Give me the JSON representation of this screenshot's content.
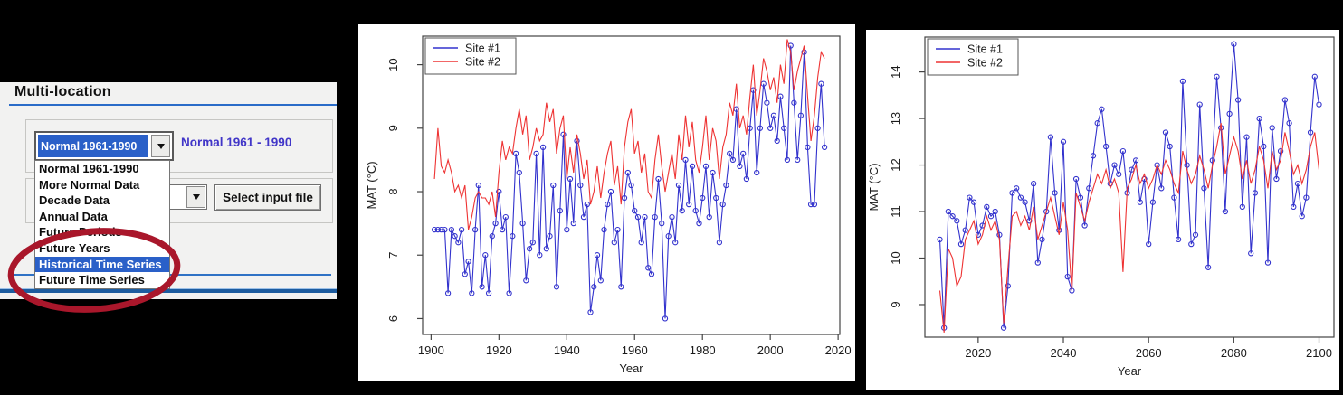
{
  "panel": {
    "title": "Multi-location",
    "accent_color": "#2a6cc8",
    "combo1": {
      "value": "Normal 1961-1990"
    },
    "combo1_label": "Normal 1961 - 1990",
    "select_button": "Select input file",
    "dropdown_items": [
      "Normal 1961-1990",
      "More Normal Data",
      "Decade Data",
      "Annual Data",
      "Future Periods",
      "Future Years",
      "Historical Time Series",
      "Future Time Series"
    ],
    "highlighted_index": 6,
    "highlight_color": "#2a60c8",
    "annotation_color": "#a9172b"
  },
  "chart_data": [
    {
      "type": "line",
      "title": "",
      "xlabel": "Year",
      "ylabel": "MAT (°C)",
      "xlim": [
        1897.5,
        2020.5
      ],
      "ylim": [
        5.75,
        10.45
      ],
      "xticks": [
        1900,
        1920,
        1940,
        1960,
        1980,
        2000,
        2020
      ],
      "yticks": [
        6,
        7,
        8,
        9,
        10
      ],
      "grid": false,
      "legend_position": "topleft",
      "start_year": 1901,
      "series": [
        {
          "name": "Site #1",
          "color": "#3232cd",
          "marker": "circle",
          "values": [
            7.4,
            7.4,
            7.4,
            7.4,
            6.4,
            7.4,
            7.3,
            7.2,
            7.4,
            6.7,
            6.9,
            6.4,
            7.4,
            8.1,
            6.5,
            7.0,
            6.4,
            7.3,
            7.5,
            8.0,
            7.4,
            7.6,
            6.4,
            7.3,
            8.6,
            8.3,
            7.5,
            6.6,
            7.1,
            7.2,
            8.6,
            7.0,
            8.7,
            7.1,
            7.3,
            8.1,
            6.5,
            7.7,
            8.9,
            7.4,
            8.2,
            7.5,
            8.8,
            8.1,
            7.6,
            7.8,
            6.1,
            6.5,
            7.0,
            6.6,
            7.4,
            7.8,
            8.0,
            7.2,
            7.4,
            6.5,
            7.9,
            8.3,
            8.1,
            7.7,
            7.6,
            7.2,
            7.6,
            6.8,
            6.7,
            7.6,
            8.2,
            7.5,
            6.0,
            7.3,
            7.6,
            7.2,
            8.1,
            7.7,
            8.5,
            7.8,
            8.4,
            7.7,
            7.5,
            7.9,
            8.4,
            7.6,
            8.3,
            7.9,
            7.2,
            7.8,
            8.1,
            8.6,
            8.5,
            9.3,
            8.4,
            8.6,
            8.2,
            9.0,
            9.6,
            8.3,
            9.0,
            9.7,
            9.4,
            9.0,
            9.2,
            8.8,
            9.5,
            9.0,
            8.5,
            10.3,
            9.4,
            8.5,
            9.2,
            10.2,
            8.7,
            7.8,
            7.8,
            9.0,
            9.7,
            8.7
          ]
        },
        {
          "name": "Site #2",
          "color": "#ee3333",
          "marker": "none",
          "values": [
            8.2,
            9.0,
            8.4,
            8.3,
            8.5,
            8.3,
            8.0,
            8.1,
            7.9,
            8.1,
            7.4,
            7.6,
            7.9,
            8.0,
            7.9,
            7.9,
            7.8,
            8.0,
            7.6,
            8.3,
            8.8,
            8.5,
            8.7,
            8.6,
            9.0,
            9.3,
            8.9,
            9.2,
            8.5,
            8.7,
            9.0,
            8.8,
            8.9,
            9.4,
            9.1,
            9.3,
            8.6,
            9.0,
            9.2,
            8.2,
            8.7,
            8.3,
            8.9,
            8.6,
            8.2,
            8.5,
            7.8,
            8.0,
            8.4,
            7.9,
            8.3,
            8.6,
            8.8,
            8.1,
            8.4,
            7.8,
            8.7,
            9.1,
            9.3,
            8.6,
            8.8,
            8.3,
            8.6,
            8.0,
            7.9,
            8.5,
            8.9,
            8.4,
            8.0,
            8.3,
            8.6,
            8.2,
            8.9,
            8.5,
            9.2,
            8.7,
            9.1,
            8.5,
            8.3,
            8.7,
            9.2,
            8.5,
            9.0,
            8.8,
            8.2,
            8.7,
            8.9,
            9.4,
            9.2,
            9.7,
            9.0,
            9.2,
            8.9,
            9.5,
            10.0,
            9.2,
            9.6,
            10.1,
            9.9,
            9.6,
            9.8,
            9.4,
            10.0,
            9.7,
            10.4,
            10.2,
            9.6,
            9.9,
            10.1,
            10.3,
            9.5,
            8.8,
            9.2,
            9.8,
            10.2,
            10.1
          ]
        }
      ]
    },
    {
      "type": "line",
      "title": "",
      "xlabel": "Year",
      "ylabel": "MAT (°C)",
      "xlim": [
        2007.5,
        2103.5
      ],
      "ylim": [
        8.3,
        14.75
      ],
      "xticks": [
        2020,
        2040,
        2060,
        2080,
        2100
      ],
      "yticks": [
        9,
        10,
        11,
        12,
        13,
        14
      ],
      "grid": false,
      "legend_position": "topleft",
      "start_year": 2011,
      "series": [
        {
          "name": "Site #1",
          "color": "#3232cd",
          "marker": "circle",
          "values": [
            10.4,
            8.5,
            11.0,
            10.9,
            10.8,
            10.3,
            10.6,
            11.3,
            11.2,
            10.5,
            10.7,
            11.1,
            10.9,
            11.0,
            10.5,
            8.5,
            9.4,
            11.4,
            11.5,
            11.3,
            11.2,
            10.8,
            11.6,
            9.9,
            10.4,
            11.0,
            12.6,
            11.4,
            10.6,
            12.5,
            9.6,
            9.3,
            11.7,
            11.3,
            10.7,
            11.5,
            12.2,
            12.9,
            13.2,
            12.4,
            11.6,
            12.0,
            11.8,
            12.3,
            11.4,
            11.9,
            12.1,
            11.2,
            11.7,
            10.3,
            11.2,
            12.0,
            11.5,
            12.7,
            12.4,
            11.3,
            10.4,
            13.8,
            12.0,
            10.3,
            10.5,
            13.3,
            11.5,
            9.8,
            12.1,
            13.9,
            12.8,
            11.0,
            13.1,
            14.6,
            13.4,
            11.1,
            12.6,
            10.1,
            11.4,
            13.0,
            12.4,
            9.9,
            12.8,
            11.7,
            12.3,
            13.4,
            12.9,
            11.1,
            11.6,
            10.9,
            11.3,
            12.7,
            13.9,
            13.3
          ]
        },
        {
          "name": "Site #2",
          "color": "#ee3333",
          "marker": "none",
          "values": [
            9.3,
            8.4,
            10.2,
            10.0,
            9.4,
            9.6,
            10.4,
            10.6,
            10.8,
            10.3,
            10.5,
            10.9,
            10.6,
            10.8,
            10.4,
            8.6,
            9.8,
            10.9,
            11.0,
            10.7,
            10.9,
            10.6,
            11.1,
            10.4,
            10.7,
            11.0,
            11.3,
            10.9,
            10.5,
            11.2,
            10.6,
            9.3,
            11.4,
            11.1,
            10.8,
            11.2,
            11.5,
            11.8,
            11.6,
            11.9,
            11.5,
            11.7,
            11.4,
            9.7,
            11.5,
            11.7,
            12.0,
            11.6,
            11.8,
            11.5,
            11.7,
            12.0,
            11.8,
            12.1,
            11.9,
            11.6,
            11.4,
            12.3,
            11.9,
            11.6,
            11.8,
            12.2,
            11.9,
            11.5,
            12.0,
            12.4,
            12.9,
            11.8,
            12.2,
            12.6,
            12.3,
            11.7,
            12.1,
            11.6,
            11.9,
            12.4,
            12.1,
            11.5,
            12.3,
            11.9,
            12.1,
            12.7,
            12.3,
            11.8,
            12.0,
            11.6,
            11.9,
            12.4,
            12.7,
            11.9
          ]
        }
      ]
    }
  ]
}
